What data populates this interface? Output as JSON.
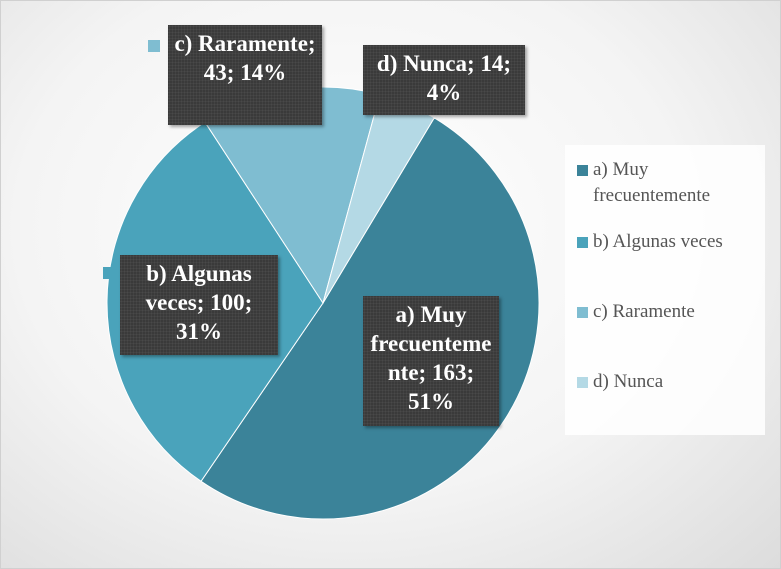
{
  "chart_data": {
    "type": "pie",
    "categories": [
      "a) Muy frecuentemente",
      "b) Algunas veces",
      "c) Raramente",
      "d) Nunca"
    ],
    "values": [
      163,
      100,
      43,
      14
    ],
    "value_labels": [
      "a) Muy frecuentemente; 163; 51%",
      "b) Algunas veces; 100; 31%",
      "c) Raramente; 43; 14%",
      "d) Nunca; 14; 4%"
    ],
    "colors": [
      "#3b8399",
      "#4aa3bb",
      "#7fbdd1",
      "#b4d9e5"
    ],
    "legend": "right"
  }
}
